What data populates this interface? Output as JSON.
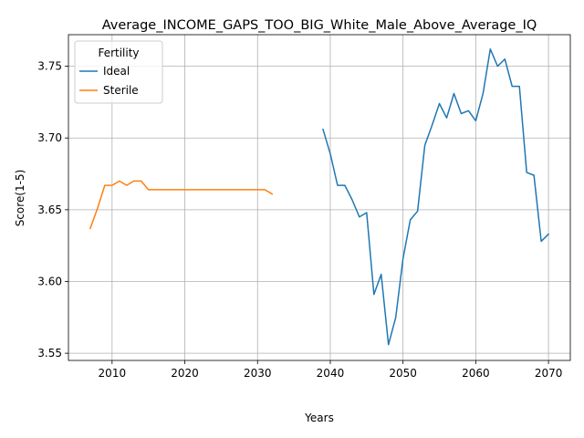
{
  "chart_data": {
    "type": "line",
    "title": "Average_INCOME_GAPS_TOO_BIG_White_Male_Above_Average_IQ",
    "xlabel": "Years",
    "ylabel": "Score(1-5)",
    "xlim": [
      2004,
      2073
    ],
    "ylim": [
      3.545,
      3.772
    ],
    "xticks": [
      2010,
      2020,
      2030,
      2040,
      2050,
      2060,
      2070
    ],
    "yticks": [
      3.55,
      3.6,
      3.65,
      3.7,
      3.75
    ],
    "ytick_labels": [
      "3.55",
      "3.60",
      "3.65",
      "3.70",
      "3.75"
    ],
    "grid": true,
    "legend": {
      "title": "Fertility",
      "placement": "top-left"
    },
    "series": [
      {
        "name": "Ideal",
        "color": "#1f77b4",
        "x": [
          2039,
          2040,
          2041,
          2042,
          2043,
          2044,
          2045,
          2046,
          2047,
          2048,
          2049,
          2050,
          2051,
          2052,
          2053,
          2054,
          2055,
          2056,
          2057,
          2058,
          2059,
          2060,
          2061,
          2062,
          2063,
          2064,
          2065,
          2066,
          2067,
          2068,
          2069,
          2070
        ],
        "y": [
          3.706,
          3.689,
          3.667,
          3.667,
          3.657,
          3.645,
          3.648,
          3.591,
          3.605,
          3.556,
          3.575,
          3.616,
          3.643,
          3.649,
          3.695,
          3.709,
          3.724,
          3.714,
          3.731,
          3.717,
          3.719,
          3.712,
          3.731,
          3.762,
          3.75,
          3.755,
          3.736,
          3.736,
          3.676,
          3.674,
          3.628,
          3.633
        ]
      },
      {
        "name": "Sterile",
        "color": "#ff7f0e",
        "x": [
          2007,
          2008,
          2009,
          2010,
          2011,
          2012,
          2013,
          2014,
          2015,
          2016,
          2017,
          2018,
          2019,
          2020,
          2021,
          2022,
          2023,
          2024,
          2025,
          2026,
          2027,
          2028,
          2029,
          2030,
          2031,
          2032
        ],
        "y": [
          3.637,
          3.651,
          3.667,
          3.667,
          3.67,
          3.667,
          3.67,
          3.67,
          3.664,
          3.664,
          3.664,
          3.664,
          3.664,
          3.664,
          3.664,
          3.664,
          3.664,
          3.664,
          3.664,
          3.664,
          3.664,
          3.664,
          3.664,
          3.664,
          3.664,
          3.661
        ]
      }
    ]
  }
}
